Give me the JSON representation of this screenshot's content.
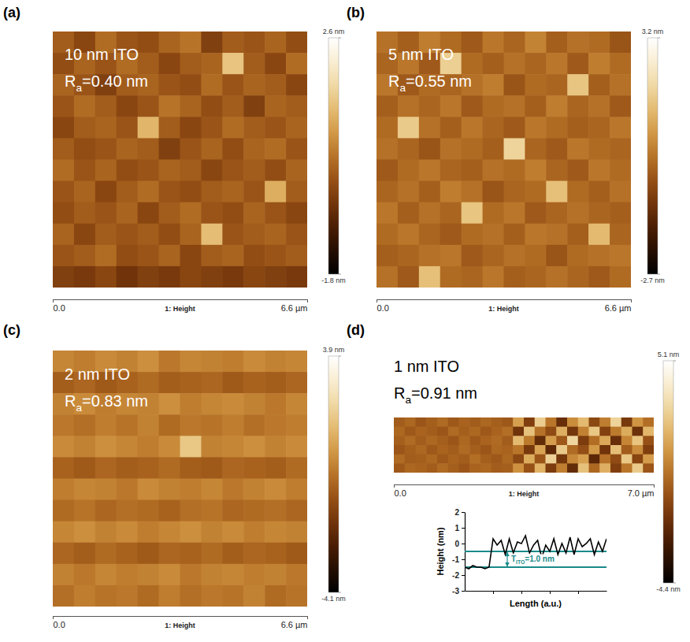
{
  "chart_data": [
    {
      "type": "heatmap",
      "panel": "(a)",
      "title": "10 nm ITO",
      "subtitle": {
        "base": "R",
        "sub": "a",
        "rest": "=0.40 nm"
      },
      "xlabel": "1: Height",
      "xlim": [
        0,
        6.6
      ],
      "xticks": [
        {
          "value": 0,
          "label": "0.0"
        },
        {
          "value": 6.6,
          "label": "6.6 µm"
        }
      ],
      "tick_labels": "x",
      "cells": [
        [
          0.1,
          -0.2,
          0.3,
          0.0,
          -0.1,
          0.2,
          0.4,
          -0.3,
          0.1,
          0.0,
          0.2,
          -0.1
        ],
        [
          -0.1,
          0.2,
          0.0,
          0.3,
          0.1,
          -0.2,
          0.1,
          0.2,
          1.4,
          0.1,
          -0.2,
          0.3
        ],
        [
          0.2,
          0.0,
          -0.3,
          0.1,
          0.2,
          0.0,
          -0.1,
          0.3,
          0.0,
          0.2,
          0.1,
          -0.2
        ],
        [
          0.0,
          0.3,
          0.1,
          -0.2,
          0.0,
          0.4,
          0.2,
          -0.1,
          0.1,
          -0.3,
          0.2,
          0.1
        ],
        [
          -0.2,
          0.1,
          0.2,
          0.0,
          1.2,
          0.1,
          -0.2,
          0.0,
          0.3,
          0.1,
          0.0,
          0.2
        ],
        [
          0.1,
          -0.1,
          0.0,
          0.2,
          0.1,
          -0.3,
          0.0,
          0.2,
          -0.1,
          0.2,
          0.3,
          0.0
        ],
        [
          0.3,
          0.0,
          0.2,
          -0.1,
          0.0,
          0.2,
          0.1,
          -0.2,
          0.0,
          0.1,
          -0.1,
          0.2
        ],
        [
          0.0,
          0.2,
          -0.2,
          0.1,
          0.3,
          0.0,
          -0.1,
          0.1,
          0.2,
          0.0,
          1.1,
          0.1
        ],
        [
          -0.1,
          0.1,
          0.0,
          0.2,
          -0.2,
          0.1,
          0.3,
          0.0,
          -0.1,
          0.2,
          0.0,
          -0.2
        ],
        [
          0.2,
          -0.2,
          0.1,
          0.0,
          0.1,
          -0.1,
          0.2,
          1.3,
          0.0,
          0.1,
          0.2,
          0.0
        ],
        [
          0.0,
          0.1,
          0.3,
          -0.1,
          0.0,
          0.2,
          -0.2,
          0.1,
          0.2,
          -0.1,
          0.0,
          0.1
        ],
        [
          -0.3,
          -0.4,
          -0.2,
          -0.5,
          -0.3,
          -0.4,
          -0.2,
          -0.3,
          -0.4,
          -0.2,
          -0.3,
          -0.4
        ]
      ],
      "colorbar": {
        "range": [
          -1.8,
          2.6
        ],
        "ticks": [
          {
            "value": -1.8,
            "label": "-1.8 nm"
          },
          {
            "value": 2.6,
            "label": "2.6 nm"
          }
        ]
      }
    },
    {
      "type": "heatmap",
      "panel": "(b)",
      "title": "5 nm ITO",
      "subtitle": {
        "base": "R",
        "sub": "a",
        "rest": "=0.55 nm"
      },
      "xlabel": "1: Height",
      "xlim": [
        0,
        6.6
      ],
      "xticks": [
        {
          "value": 0,
          "label": "0.0"
        },
        {
          "value": 6.6,
          "label": "6.6 µm"
        }
      ],
      "tick_labels": "x",
      "cells": [
        [
          0.2,
          -0.1,
          0.4,
          0.1,
          -0.2,
          0.3,
          0.0,
          0.5,
          -0.1,
          0.2,
          0.1,
          -0.3
        ],
        [
          0.0,
          0.3,
          -0.2,
          1.8,
          0.1,
          -0.1,
          0.2,
          0.0,
          0.3,
          -0.2,
          0.4,
          0.1
        ],
        [
          0.3,
          -0.2,
          0.1,
          0.0,
          0.2,
          0.4,
          -0.3,
          0.1,
          0.0,
          1.6,
          -0.1,
          0.2
        ],
        [
          -0.1,
          0.2,
          0.0,
          0.3,
          -0.2,
          0.1,
          0.2,
          -0.1,
          0.4,
          0.0,
          0.2,
          -0.2
        ],
        [
          0.1,
          1.7,
          0.2,
          -0.1,
          0.3,
          0.0,
          -0.2,
          0.3,
          0.1,
          -0.1,
          0.0,
          0.3
        ],
        [
          0.2,
          0.0,
          -0.3,
          0.2,
          0.1,
          -0.1,
          1.9,
          0.0,
          -0.2,
          0.3,
          0.1,
          0.0
        ],
        [
          -0.2,
          0.1,
          0.3,
          0.0,
          -0.1,
          0.2,
          0.1,
          0.4,
          0.0,
          -0.2,
          0.3,
          0.1
        ],
        [
          0.0,
          0.2,
          -0.1,
          0.4,
          0.2,
          -0.3,
          0.0,
          0.1,
          1.5,
          0.1,
          -0.1,
          0.2
        ],
        [
          0.3,
          -0.1,
          0.2,
          0.0,
          1.6,
          0.1,
          0.3,
          -0.2,
          0.0,
          0.2,
          0.0,
          -0.1
        ],
        [
          0.1,
          0.3,
          0.0,
          -0.2,
          0.1,
          0.2,
          -0.1,
          0.3,
          0.2,
          -0.1,
          1.4,
          0.0
        ],
        [
          -0.1,
          0.0,
          0.2,
          0.3,
          -0.2,
          0.0,
          0.2,
          0.1,
          -0.3,
          0.1,
          0.2,
          0.3
        ],
        [
          0.2,
          -0.2,
          1.5,
          0.1,
          0.0,
          0.3,
          -0.1,
          0.0,
          0.2,
          0.0,
          -0.2,
          0.1
        ]
      ],
      "colorbar": {
        "range": [
          -2.7,
          3.2
        ],
        "ticks": [
          {
            "value": -2.7,
            "label": "-2.7 nm"
          },
          {
            "value": 3.2,
            "label": "3.2 nm"
          }
        ]
      }
    },
    {
      "type": "heatmap",
      "panel": "(c)",
      "title": "2 nm ITO",
      "subtitle": {
        "base": "R",
        "sub": "a",
        "rest": "=0.83 nm"
      },
      "xlabel": "1: Height",
      "xlim": [
        0,
        6.6
      ],
      "xticks": [
        {
          "value": 0,
          "label": "0.0"
        },
        {
          "value": 6.6,
          "label": "6.6 µm"
        }
      ],
      "tick_labels": "x",
      "cells": [
        [
          0.3,
          0.1,
          0.4,
          0.2,
          0.5,
          0.0,
          0.3,
          0.2,
          0.1,
          0.4,
          0.2,
          0.3
        ],
        [
          -0.6,
          -0.4,
          -0.7,
          -0.5,
          -0.3,
          -0.6,
          -0.5,
          -0.4,
          -0.7,
          -0.5,
          -0.6,
          -0.4
        ],
        [
          0.2,
          0.4,
          0.1,
          0.3,
          0.2,
          0.5,
          0.1,
          0.3,
          0.4,
          0.2,
          0.0,
          0.3
        ],
        [
          0.0,
          -0.2,
          0.1,
          -0.1,
          0.2,
          -0.3,
          0.0,
          -0.1,
          0.1,
          -0.2,
          0.0,
          0.1
        ],
        [
          0.4,
          0.2,
          0.5,
          0.3,
          0.1,
          0.4,
          1.8,
          0.2,
          0.3,
          0.5,
          0.2,
          0.4
        ],
        [
          -0.5,
          -0.7,
          -0.4,
          -0.6,
          -0.5,
          -0.3,
          -0.6,
          -0.7,
          -0.4,
          -0.5,
          -0.6,
          -0.3
        ],
        [
          0.1,
          0.3,
          0.2,
          0.0,
          0.4,
          0.2,
          0.1,
          0.3,
          0.0,
          0.2,
          0.4,
          0.1
        ],
        [
          -0.3,
          -0.1,
          -0.4,
          -0.2,
          -0.3,
          -0.5,
          -0.2,
          -0.1,
          -0.4,
          -0.3,
          -0.2,
          -0.4
        ],
        [
          0.3,
          0.5,
          0.2,
          0.4,
          0.1,
          0.3,
          0.5,
          0.2,
          0.4,
          0.1,
          0.3,
          0.2
        ],
        [
          -0.4,
          -0.6,
          -0.3,
          -0.5,
          -0.7,
          -0.4,
          -0.5,
          -0.3,
          -0.6,
          -0.4,
          -0.5,
          -0.7
        ],
        [
          0.2,
          0.0,
          0.3,
          0.1,
          0.2,
          0.4,
          0.0,
          0.2,
          0.3,
          0.1,
          0.2,
          0.0
        ],
        [
          -0.2,
          0.1,
          -0.1,
          0.0,
          -0.3,
          0.1,
          -0.2,
          0.0,
          -0.1,
          0.2,
          -0.3,
          -0.1
        ]
      ],
      "colorbar": {
        "range": [
          -4.1,
          3.9
        ],
        "ticks": [
          {
            "value": -4.1,
            "label": "-4.1 nm"
          },
          {
            "value": 3.9,
            "label": "3.9 nm"
          }
        ]
      }
    },
    {
      "type": "heatmap",
      "panel": "(d)",
      "title": "1 nm ITO",
      "subtitle": {
        "base": "R",
        "sub": "a",
        "rest": "=0.91 nm"
      },
      "xlabel": "1: Height",
      "xlim": [
        0,
        7.0
      ],
      "xticks": [
        {
          "value": 0,
          "label": "0.0"
        },
        {
          "value": 7.0,
          "label": "7.0 µm"
        }
      ],
      "tick_labels": "x",
      "cells": [
        [
          -0.3,
          0.0,
          -0.5,
          -0.2,
          0.1,
          -0.4,
          -0.1,
          -0.3,
          0.0,
          -0.2,
          -0.4,
          1.5,
          -1.2,
          2.8,
          0.4,
          -1.8,
          1.0,
          2.2,
          -0.9,
          0.6,
          3.0,
          -1.4,
          1.2,
          0.2
        ],
        [
          0.0,
          -0.4,
          -0.1,
          -0.3,
          -0.5,
          0.1,
          -0.2,
          0.0,
          -0.4,
          -0.1,
          0.2,
          -1.6,
          2.4,
          0.3,
          -0.8,
          1.9,
          -1.5,
          0.7,
          2.6,
          -1.1,
          0.5,
          1.8,
          -1.7,
          2.1
        ],
        [
          -0.2,
          0.1,
          -0.3,
          0.0,
          -0.2,
          -0.5,
          0.0,
          -0.4,
          -0.1,
          0.1,
          -0.3,
          2.2,
          0.5,
          -1.9,
          1.4,
          -0.4,
          3.1,
          -1.3,
          0.2,
          1.7,
          -1.8,
          0.8,
          2.5,
          -0.6
        ],
        [
          -0.5,
          -0.2,
          0.0,
          -0.4,
          -0.1,
          -0.3,
          0.1,
          -0.2,
          -0.5,
          0.0,
          -0.1,
          0.4,
          -1.4,
          1.6,
          -2.0,
          2.7,
          0.1,
          -0.7,
          1.3,
          -1.6,
          2.3,
          -0.3,
          1.0,
          -1.2
        ],
        [
          0.1,
          -0.3,
          -0.2,
          0.0,
          -0.4,
          -0.1,
          -0.3,
          0.2,
          -0.2,
          -0.4,
          0.0,
          -0.9,
          1.8,
          -0.5,
          2.9,
          -1.5,
          0.9,
          1.5,
          -2.1,
          0.3,
          -0.8,
          2.6,
          -1.0,
          1.4
        ],
        [
          -0.4,
          0.0,
          -0.1,
          -0.3,
          0.1,
          -0.2,
          -0.5,
          -0.1,
          0.0,
          -0.3,
          -0.2,
          1.1,
          -0.6,
          2.0,
          -1.3,
          0.6,
          -1.9,
          2.4,
          0.0,
          1.9,
          -1.2,
          0.4,
          2.7,
          -0.5
        ]
      ],
      "colorbar": {
        "range": [
          -4.4,
          5.1
        ],
        "ticks": [
          {
            "value": -4.4,
            "label": "-4.4 nm"
          },
          {
            "value": 5.1,
            "label": "5.1 nm"
          }
        ]
      }
    },
    {
      "type": "line",
      "xlabel": "Length (a.u.)",
      "ylabel": "Height (nm)",
      "x": [
        0,
        1,
        2,
        3,
        4,
        5,
        6,
        7,
        8,
        9,
        10,
        11,
        12,
        13,
        14,
        15,
        16,
        17,
        18,
        19,
        20,
        21,
        22,
        23,
        24,
        25,
        26,
        27,
        28,
        29,
        30,
        31,
        32,
        33,
        34,
        35
      ],
      "values": [
        -1.5,
        -1.6,
        -1.4,
        -1.5,
        -1.5,
        -1.6,
        -1.5,
        0.3,
        -0.1,
        0.2,
        -0.7,
        0.3,
        -0.6,
        0.1,
        0.0,
        0.5,
        -0.6,
        -0.1,
        0.2,
        -0.9,
        -0.1,
        -0.5,
        0.3,
        -0.7,
        0.0,
        -0.6,
        0.4,
        -0.7,
        0.3,
        -0.2,
        0.0,
        0.3,
        -0.7,
        0.1,
        -0.5,
        0.3
      ],
      "color": "#000000",
      "xlim": [
        0,
        35
      ],
      "ylim": [
        -3,
        2
      ],
      "xticks": [
        7,
        14,
        21,
        28
      ],
      "yticks": [
        -3,
        -2,
        -1,
        0,
        1,
        2
      ],
      "tick_labels": "y",
      "reference_lines": {
        "values": [
          -1.5,
          -0.5
        ],
        "color": "#1a8a8a"
      },
      "annotation": {
        "base": "T",
        "sub": "ITO",
        "rest": "=1.0 nm"
      }
    }
  ]
}
